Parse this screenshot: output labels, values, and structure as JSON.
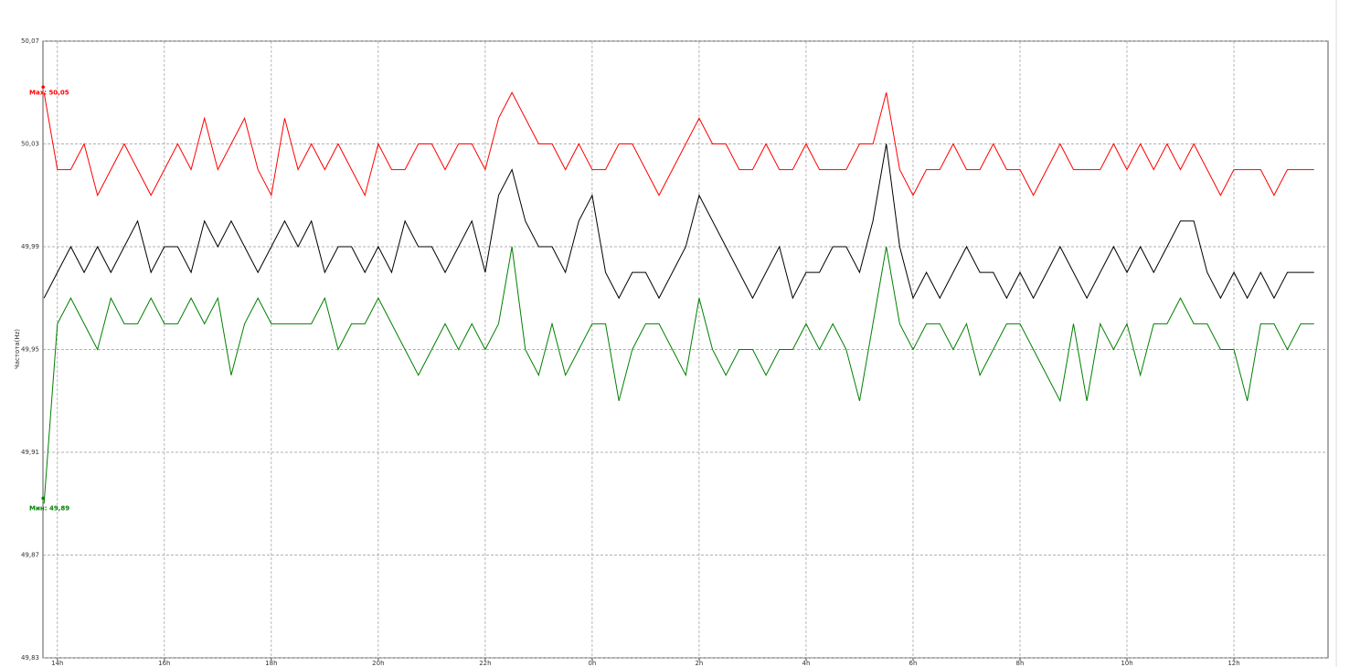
{
  "chart_data": {
    "type": "line",
    "y_label": "Частота(Hz)",
    "xlim": [
      13.73,
      37.76
    ],
    "ylim": [
      49.83,
      50.07
    ],
    "grid": true,
    "xticks": [
      {
        "value": 14,
        "label": "14h"
      },
      {
        "value": 16,
        "label": "16h"
      },
      {
        "value": 18,
        "label": "18h"
      },
      {
        "value": 20,
        "label": "20h"
      },
      {
        "value": 22,
        "label": "22h"
      },
      {
        "value": 24,
        "label": "0h"
      },
      {
        "value": 26,
        "label": "2h"
      },
      {
        "value": 28,
        "label": "4h"
      },
      {
        "value": 30,
        "label": "6h"
      },
      {
        "value": 32,
        "label": "8h"
      },
      {
        "value": 34,
        "label": "10h"
      },
      {
        "value": 36,
        "label": "12h"
      }
    ],
    "yticks": [
      {
        "value": 49.83,
        "label": "49,83"
      },
      {
        "value": 49.87,
        "label": "49,87"
      },
      {
        "value": 49.91,
        "label": "49,91"
      },
      {
        "value": 49.95,
        "label": "49,95"
      },
      {
        "value": 49.99,
        "label": "49,99"
      },
      {
        "value": 50.03,
        "label": "50,03"
      },
      {
        "value": 50.07,
        "label": "50,07"
      }
    ],
    "x": [
      13.75,
      14,
      14.25,
      14.5,
      14.75,
      15,
      15.25,
      15.5,
      15.75,
      16,
      16.25,
      16.5,
      16.75,
      17,
      17.25,
      17.5,
      17.75,
      18,
      18.25,
      18.5,
      18.75,
      19,
      19.25,
      19.5,
      19.75,
      20,
      20.25,
      20.5,
      20.75,
      21,
      21.25,
      21.5,
      21.75,
      22,
      22.25,
      22.5,
      22.75,
      23,
      23.25,
      23.5,
      23.75,
      24,
      24.25,
      24.5,
      24.75,
      25,
      25.25,
      25.5,
      25.75,
      26,
      26.25,
      26.5,
      26.75,
      27,
      27.25,
      27.5,
      27.75,
      28,
      28.25,
      28.5,
      28.75,
      29,
      29.25,
      29.5,
      29.75,
      30,
      30.25,
      30.5,
      30.75,
      31,
      31.25,
      31.5,
      31.75,
      32,
      32.25,
      32.5,
      32.75,
      33,
      33.25,
      33.5,
      33.75,
      34,
      34.25,
      34.5,
      34.75,
      35,
      35.25,
      35.5,
      35.75,
      36,
      36.25,
      36.5,
      36.75,
      37,
      37.25,
      37.5
    ],
    "series": [
      {
        "color": "#ff0000",
        "values": [
          50.05,
          50.02,
          50.02,
          50.03,
          50.01,
          50.02,
          50.03,
          50.02,
          50.01,
          50.02,
          50.03,
          50.02,
          50.04,
          50.02,
          50.03,
          50.04,
          50.02,
          50.01,
          50.04,
          50.02,
          50.03,
          50.02,
          50.03,
          50.02,
          50.01,
          50.03,
          50.02,
          50.02,
          50.03,
          50.03,
          50.02,
          50.03,
          50.03,
          50.02,
          50.04,
          50.05,
          50.04,
          50.03,
          50.03,
          50.02,
          50.03,
          50.02,
          50.02,
          50.03,
          50.03,
          50.02,
          50.01,
          50.02,
          50.03,
          50.04,
          50.03,
          50.03,
          50.02,
          50.02,
          50.03,
          50.02,
          50.02,
          50.03,
          50.02,
          50.02,
          50.02,
          50.03,
          50.03,
          50.05,
          50.02,
          50.01,
          50.02,
          50.02,
          50.03,
          50.02,
          50.02,
          50.03,
          50.02,
          50.02,
          50.01,
          50.02,
          50.03,
          50.02,
          50.02,
          50.02,
          50.03,
          50.02,
          50.03,
          50.02,
          50.03,
          50.02,
          50.03,
          50.02,
          50.01,
          50.02,
          50.02,
          50.02,
          50.01,
          50.02,
          50.02,
          50.02
        ]
      },
      {
        "color": "#000000",
        "values": [
          49.97,
          49.98,
          49.99,
          49.98,
          49.99,
          49.98,
          49.99,
          50.0,
          49.98,
          49.99,
          49.99,
          49.98,
          50.0,
          49.99,
          50.0,
          49.99,
          49.98,
          49.99,
          50.0,
          49.99,
          50.0,
          49.98,
          49.99,
          49.99,
          49.98,
          49.99,
          49.98,
          50.0,
          49.99,
          49.99,
          49.98,
          49.99,
          50.0,
          49.98,
          50.01,
          50.02,
          50.0,
          49.99,
          49.99,
          49.98,
          50.0,
          50.01,
          49.98,
          49.97,
          49.98,
          49.98,
          49.97,
          49.98,
          49.99,
          50.01,
          50.0,
          49.99,
          49.98,
          49.97,
          49.98,
          49.99,
          49.97,
          49.98,
          49.98,
          49.99,
          49.99,
          49.98,
          50.0,
          50.03,
          49.99,
          49.97,
          49.98,
          49.97,
          49.98,
          49.99,
          49.98,
          49.98,
          49.97,
          49.98,
          49.97,
          49.98,
          49.99,
          49.98,
          49.97,
          49.98,
          49.99,
          49.98,
          49.99,
          49.98,
          49.99,
          50.0,
          50.0,
          49.98,
          49.97,
          49.98,
          49.97,
          49.98,
          49.97,
          49.98,
          49.98,
          49.98
        ]
      },
      {
        "color": "#008000",
        "values": [
          49.89,
          49.96,
          49.97,
          49.96,
          49.95,
          49.97,
          49.96,
          49.96,
          49.97,
          49.96,
          49.96,
          49.97,
          49.96,
          49.97,
          49.94,
          49.96,
          49.97,
          49.96,
          49.96,
          49.96,
          49.96,
          49.97,
          49.95,
          49.96,
          49.96,
          49.97,
          49.96,
          49.95,
          49.94,
          49.95,
          49.96,
          49.95,
          49.96,
          49.95,
          49.96,
          49.99,
          49.95,
          49.94,
          49.96,
          49.94,
          49.95,
          49.96,
          49.96,
          49.93,
          49.95,
          49.96,
          49.96,
          49.95,
          49.94,
          49.97,
          49.95,
          49.94,
          49.95,
          49.95,
          49.94,
          49.95,
          49.95,
          49.96,
          49.95,
          49.96,
          49.95,
          49.93,
          49.96,
          49.99,
          49.96,
          49.95,
          49.96,
          49.96,
          49.95,
          49.96,
          49.94,
          49.95,
          49.96,
          49.96,
          49.95,
          49.94,
          49.93,
          49.96,
          49.93,
          49.96,
          49.95,
          49.96,
          49.94,
          49.96,
          49.96,
          49.97,
          49.96,
          49.96,
          49.95,
          49.95,
          49.93,
          49.96,
          49.96,
          49.95,
          49.96,
          49.96
        ]
      }
    ],
    "annotations": [
      {
        "text": "Max: 50,05",
        "color": "#ff0000"
      },
      {
        "text": "Мин: 49,89",
        "color": "#008000"
      }
    ]
  }
}
